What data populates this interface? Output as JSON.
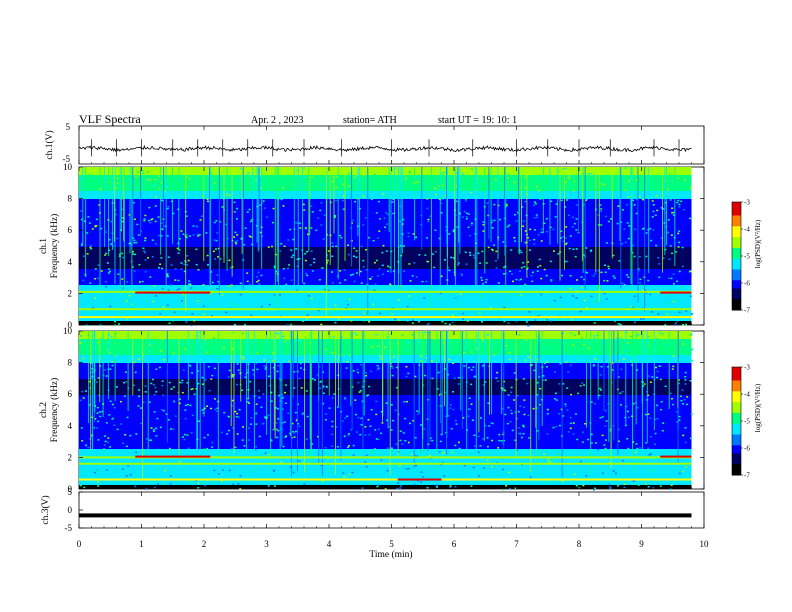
{
  "header": {
    "title": "VLF  Spectra",
    "date": "Apr. 2  , 2023",
    "station": "station= ATH",
    "start_ut": "start  UT  =   19: 10: 1"
  },
  "colors": {
    "spectrogram_scale": [
      "#000000",
      "#000060",
      "#0000ff",
      "#0078ff",
      "#00e8ff",
      "#00ff80",
      "#a0ff00",
      "#ffff00",
      "#ff8000",
      "#e00000",
      "#ffffff"
    ],
    "waveform": "#000000"
  },
  "chart_data": [
    {
      "type": "line",
      "name": "ch1-waveform",
      "ylabel": "ch.1(V)",
      "ylim": [
        -5,
        5
      ],
      "y_ticks": [
        "5",
        "-5"
      ],
      "x": [
        0,
        1,
        2,
        3,
        4,
        5,
        6,
        7,
        8,
        9,
        9.8
      ],
      "values": [
        -1.2,
        -0.9,
        -1.1,
        -1.0,
        -1.2,
        -1.0,
        -1.1,
        -0.9,
        -1.2,
        -1.0,
        -1.0
      ],
      "spikes_at_min": [
        0.2,
        0.6,
        1.0,
        1.5,
        1.9,
        2.3,
        2.7,
        3.1,
        3.6,
        4.2,
        5.0,
        5.6,
        6.3,
        7.0,
        7.5,
        8.0,
        8.5,
        9.2,
        9.6
      ]
    },
    {
      "type": "heatmap",
      "name": "ch1-spectrogram",
      "ylabel": "ch.1\nFrequency  (kHz)",
      "ylim": [
        0,
        10
      ],
      "y_ticks": [
        "0",
        "2",
        "4",
        "6",
        "8",
        "10"
      ],
      "x_range_min": [
        0,
        9.8
      ],
      "colorbar": {
        "label": "log(PSD)(V²/Hz)",
        "range": [
          -7,
          -3
        ],
        "ticks": [
          "-3",
          "-4",
          "-5",
          "-6",
          "-7"
        ]
      },
      "features": {
        "bright_top_band_khz": [
          8,
          10
        ],
        "dark_band_khz": [
          3.6,
          5.0
        ],
        "line_khz": [
          2.1,
          1.0,
          0.5
        ],
        "red_segments_at_2khz_min": [
          [
            0.9,
            2.1
          ],
          [
            9.3,
            9.8
          ]
        ]
      }
    },
    {
      "type": "heatmap",
      "name": "ch2-spectrogram",
      "ylabel": "ch.2\nFrequency  (kHz)",
      "ylim": [
        0,
        10
      ],
      "y_ticks": [
        "0",
        "2",
        "4",
        "6",
        "8",
        "10"
      ],
      "x_range_min": [
        0,
        9.8
      ],
      "colorbar": {
        "label": "log(PSD)(V²/Hz)",
        "range": [
          -7,
          -3
        ],
        "ticks": [
          "-3",
          "-4",
          "-5",
          "-6",
          "-7"
        ]
      },
      "features": {
        "bright_top_band_khz": [
          8,
          10
        ],
        "dark_band_khz": [
          6.0,
          7.0
        ],
        "line_khz": [
          2.0,
          1.6,
          0.6
        ],
        "red_segments_at_2khz_min": [
          [
            0.9,
            2.1
          ],
          [
            9.3,
            9.8
          ]
        ],
        "red_segment_at_0p6khz_min": [
          [
            5.1,
            5.8
          ]
        ]
      }
    },
    {
      "type": "line",
      "name": "ch3-waveform",
      "ylabel": "ch.3(V)",
      "ylim": [
        -5,
        5
      ],
      "y_ticks": [
        "5",
        "0",
        "-5"
      ],
      "x": [
        0,
        9.8
      ],
      "values": [
        -1.5,
        -1.5
      ]
    }
  ],
  "x_axis": {
    "label": "Time  (min)",
    "range": [
      0,
      10
    ],
    "ticks": [
      "0",
      "1",
      "2",
      "3",
      "4",
      "5",
      "6",
      "7",
      "8",
      "9",
      "10"
    ]
  }
}
